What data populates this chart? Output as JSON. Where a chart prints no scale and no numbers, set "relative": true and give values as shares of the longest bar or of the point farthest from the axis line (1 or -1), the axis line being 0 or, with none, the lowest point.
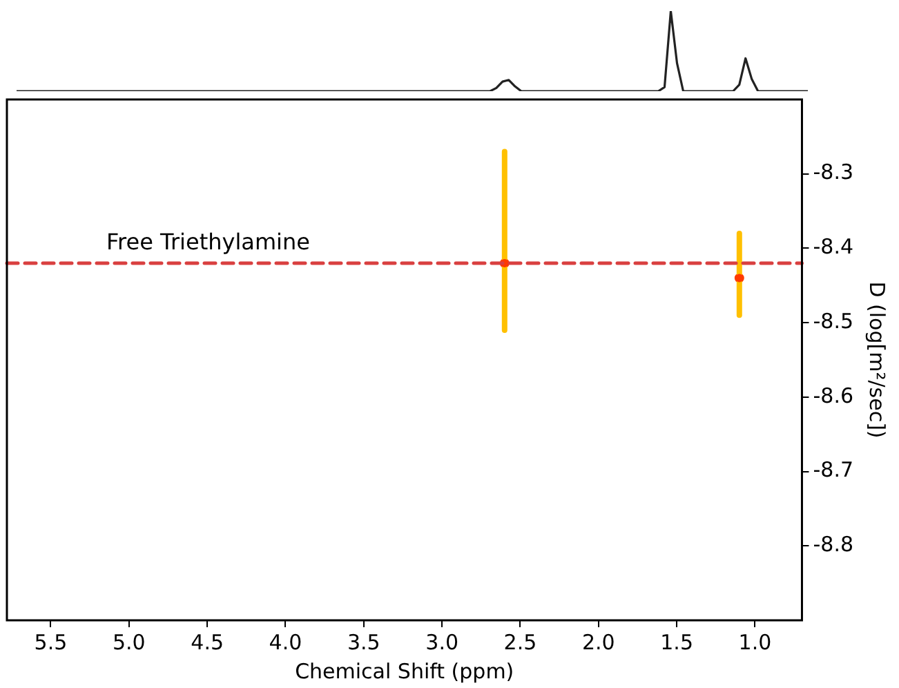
{
  "chart_data": [
    {
      "type": "line",
      "relative": true,
      "grid": false,
      "legend": false,
      "marker": "none",
      "line_style": "solid",
      "categories": [
        null,
        null,
        null,
        null,
        null,
        null,
        null,
        null,
        null,
        null,
        null,
        null,
        null,
        null,
        null,
        null,
        null,
        null,
        null,
        null,
        null,
        null,
        null,
        null,
        null,
        null,
        null,
        null,
        null,
        null,
        null,
        null,
        null,
        null,
        null,
        null,
        null,
        null,
        null,
        null,
        null,
        null,
        null,
        null,
        null,
        null,
        null,
        null,
        null,
        null,
        null,
        null,
        null,
        null,
        null,
        null,
        null,
        null,
        null,
        null,
        null,
        null,
        null,
        null,
        null,
        null,
        null,
        null,
        null,
        null,
        null,
        null,
        null,
        null,
        null,
        null,
        null,
        null,
        null,
        null,
        null,
        null,
        null,
        null,
        null,
        null,
        null,
        null,
        null,
        null,
        null,
        null,
        null,
        null,
        null,
        null,
        null,
        null,
        null,
        null,
        null,
        null,
        null,
        null,
        null,
        null,
        null,
        null,
        null,
        null,
        null,
        null,
        null,
        null,
        null,
        null,
        null,
        null,
        null,
        null,
        null,
        null,
        null,
        null,
        null,
        null,
        null,
        null
      ],
      "series": [
        {
          "color": "#222222",
          "values": [
            0,
            0,
            0,
            0,
            0,
            0,
            0,
            0,
            0,
            0,
            0,
            0,
            0,
            0,
            0,
            0,
            0,
            0,
            0,
            0,
            0,
            0,
            0,
            0,
            0,
            0,
            0,
            0,
            0,
            0,
            0,
            0,
            0,
            0,
            0,
            0,
            0,
            0,
            0,
            0,
            0,
            0,
            0,
            0,
            0,
            0,
            0,
            0,
            0,
            0,
            0,
            0,
            0,
            0,
            0,
            0,
            0,
            0,
            0,
            0,
            0,
            0,
            0,
            0,
            0,
            0,
            0,
            0,
            0,
            0,
            0,
            0,
            0,
            0,
            0,
            0,
            0,
            0.04,
            0.12,
            0.14,
            0.06,
            0,
            0,
            0,
            0,
            0,
            0,
            0,
            0,
            0,
            0,
            0,
            0,
            0,
            0,
            0,
            0,
            0,
            0,
            0,
            0,
            0,
            0,
            0,
            0.05,
            1,
            0.35,
            0,
            0,
            0,
            0,
            0,
            0,
            0,
            0,
            0,
            0.08,
            0.41,
            0.15,
            0,
            0,
            0,
            0,
            0,
            0,
            0,
            0,
            0
          ]
        }
      ]
    },
    {
      "type": "scatter",
      "xlabel": "Chemical Shift (ppm)",
      "ylabel": "D (log[m²/sec])",
      "xlim": [
        5.78,
        0.7
      ],
      "xticks": [
        5.5,
        {
          "value": 5,
          "label": "5.0"
        },
        4.5,
        {
          "value": 4,
          "label": "4.0"
        },
        3.5,
        {
          "value": 3,
          "label": "3.0"
        },
        2.5,
        {
          "value": 2,
          "label": "2.0"
        },
        1.5,
        {
          "value": 1,
          "label": "1.0"
        }
      ],
      "ylim": [
        -8.9,
        -8.2
      ],
      "yticks": [
        -8.3,
        -8.4,
        -8.5,
        -8.6,
        -8.7,
        -8.8
      ],
      "grid": false,
      "legend": false,
      "marker": "circle",
      "series": [
        {
          "color": "#ff3a00",
          "x": [
            2.6,
            1.1
          ],
          "values": [
            -8.42,
            -8.44
          ],
          "errors": [
            [
              -8.51,
              -8.27
            ],
            [
              -8.49,
              -8.38
            ]
          ]
        }
      ],
      "ref_lines": [
        {
          "axis": "y",
          "value": -8.42,
          "label": "Free Triethylamine",
          "color": "#d94040",
          "line_style": "dashed"
        }
      ]
    }
  ]
}
